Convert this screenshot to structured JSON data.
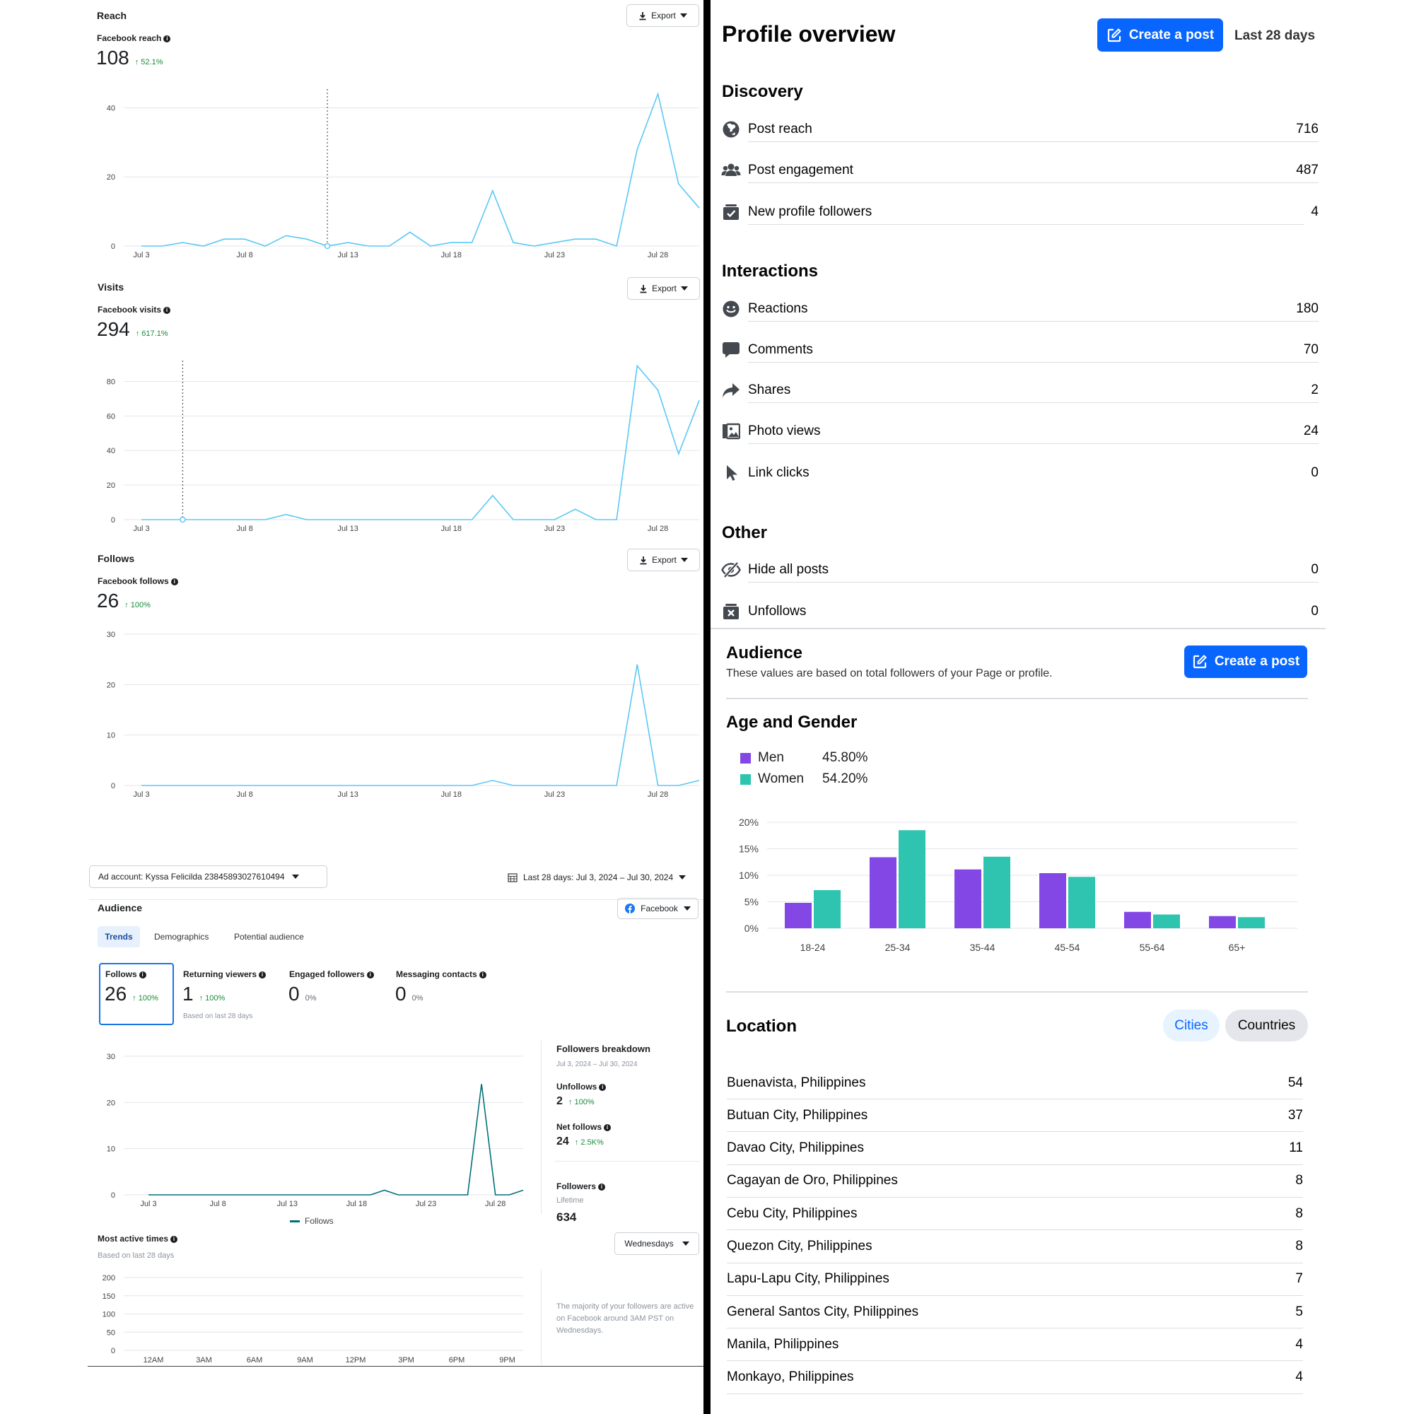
{
  "left": {
    "reach": {
      "title": "Reach",
      "export_label": "Export",
      "metric_label": "Facebook reach",
      "value": "108",
      "change": "52.1%",
      "chart_data": {
        "type": "line",
        "x_ticks": [
          "Jul 3",
          "Jul 8",
          "Jul 13",
          "Jul 18",
          "Jul 23",
          "Jul 28"
        ],
        "y_ticks": [
          "0",
          "20",
          "40"
        ],
        "ylim": [
          0,
          45
        ],
        "values": [
          0,
          0,
          1,
          0,
          2,
          2,
          0,
          3,
          2,
          0,
          1,
          0,
          0,
          4,
          0,
          1,
          1,
          16,
          1,
          0,
          1,
          2,
          2,
          0,
          28,
          44,
          18,
          11
        ],
        "color": "#5bc8f5"
      }
    },
    "visits": {
      "title": "Visits",
      "export_label": "Export",
      "metric_label": "Facebook visits",
      "value": "294",
      "change": "617.1%",
      "chart_data": {
        "type": "line",
        "x_ticks": [
          "Jul 3",
          "Jul 8",
          "Jul 13",
          "Jul 18",
          "Jul 23",
          "Jul 28"
        ],
        "y_ticks": [
          "0",
          "20",
          "40",
          "60",
          "80"
        ],
        "ylim": [
          0,
          90
        ],
        "values": [
          0,
          0,
          0,
          0,
          0,
          0,
          0,
          3,
          0,
          0,
          0,
          0,
          0,
          0,
          0,
          0,
          0,
          14,
          0,
          0,
          0,
          6,
          0,
          0,
          89,
          75,
          38,
          69
        ],
        "color": "#5bc8f5"
      }
    },
    "follows": {
      "title": "Follows",
      "export_label": "Export",
      "metric_label": "Facebook follows",
      "value": "26",
      "change": "100%",
      "chart_data": {
        "type": "line",
        "x_ticks": [
          "Jul 3",
          "Jul 8",
          "Jul 13",
          "Jul 18",
          "Jul 23",
          "Jul 28"
        ],
        "y_ticks": [
          "0",
          "10",
          "20",
          "30"
        ],
        "ylim": [
          0,
          30
        ],
        "values": [
          0,
          0,
          0,
          0,
          0,
          0,
          0,
          0,
          0,
          0,
          0,
          0,
          0,
          0,
          0,
          0,
          0,
          1,
          0,
          0,
          0,
          0,
          0,
          0,
          24,
          0,
          0,
          1
        ],
        "color": "#5bc8f5"
      }
    },
    "ad_account": "Ad account: Kyssa Felicilda 238458930276104​94",
    "date_range": "Last 28 days: Jul 3, 2024 – Jul 30, 2024",
    "audience": {
      "title": "Audience",
      "platform": "Facebook",
      "tabs": [
        "Trends",
        "Demographics",
        "Potential audience"
      ],
      "metrics": [
        {
          "label": "Follows",
          "value": "26",
          "change": "100%"
        },
        {
          "label": "Returning viewers",
          "value": "1",
          "change": "100%",
          "note": "Based on last 28 days"
        },
        {
          "label": "Engaged followers",
          "value": "0",
          "change": "0%"
        },
        {
          "label": "Messaging contacts",
          "value": "0",
          "change": "0%"
        }
      ],
      "follows_chart": {
        "type": "line",
        "x_ticks": [
          "Jul 3",
          "Jul 8",
          "Jul 13",
          "Jul 18",
          "Jul 23",
          "Jul 28"
        ],
        "y_ticks": [
          "0",
          "10",
          "20",
          "30"
        ],
        "ylim": [
          0,
          30
        ],
        "values": [
          0,
          0,
          0,
          0,
          0,
          0,
          0,
          0,
          0,
          0,
          0,
          0,
          0,
          0,
          0,
          0,
          0,
          1,
          0,
          0,
          0,
          0,
          0,
          0,
          24,
          0,
          0,
          1
        ],
        "legend": "Follows",
        "color": "#00707a"
      },
      "breakdown": {
        "title": "Followers breakdown",
        "range": "Jul 3, 2024 – Jul 30, 2024",
        "unfollows_label": "Unfollows",
        "unfollows_value": "2",
        "unfollows_change": "100%",
        "net_label": "Net follows",
        "net_value": "24",
        "net_change": "2.5K%",
        "followers_label": "Followers",
        "followers_sub": "Lifetime",
        "followers_value": "634"
      },
      "active": {
        "title": "Most active times",
        "subtitle": "Based on last 28 days",
        "day_select": "Wednesdays",
        "x_ticks": [
          "12AM",
          "3AM",
          "6AM",
          "9AM",
          "12PM",
          "3PM",
          "6PM",
          "9PM"
        ],
        "y_ticks": [
          "0",
          "50",
          "100",
          "150",
          "200"
        ],
        "note": "The majority of your followers are active on Facebook around 3AM PST on Wednesdays."
      }
    }
  },
  "right": {
    "title": "Profile overview",
    "create_post": "Create a post",
    "range": "Last 28 days",
    "discovery": {
      "title": "Discovery",
      "items": [
        {
          "label": "Post reach",
          "value": "716",
          "icon": "globe-icon"
        },
        {
          "label": "Post engagement",
          "value": "487",
          "icon": "people-icon"
        },
        {
          "label": "New profile followers",
          "value": "4",
          "icon": "check-box-icon"
        }
      ]
    },
    "interactions": {
      "title": "Interactions",
      "items": [
        {
          "label": "Reactions",
          "value": "180",
          "icon": "smile-icon"
        },
        {
          "label": "Comments",
          "value": "70",
          "icon": "comment-icon"
        },
        {
          "label": "Shares",
          "value": "2",
          "icon": "share-icon"
        },
        {
          "label": "Photo views",
          "value": "24",
          "icon": "photo-icon"
        },
        {
          "label": "Link clicks",
          "value": "0",
          "icon": "cursor-icon"
        }
      ]
    },
    "other": {
      "title": "Other",
      "items": [
        {
          "label": "Hide all posts",
          "value": "0",
          "icon": "hide-eye-icon"
        },
        {
          "label": "Unfollows",
          "value": "0",
          "icon": "x-box-icon"
        }
      ]
    },
    "audience": {
      "title": "Audience",
      "subtitle": "These values are based on total followers of your Page or profile.",
      "create_post": "Create a post"
    },
    "age_gender": {
      "title": "Age and Gender",
      "legend": [
        {
          "label": "Men",
          "value": "45.80%",
          "color": "#8247e5"
        },
        {
          "label": "Women",
          "value": "54.20%",
          "color": "#2ec4b0"
        }
      ],
      "chart_data": {
        "type": "bar",
        "categories": [
          "18-24",
          "25-34",
          "35-44",
          "45-54",
          "55-64",
          "65+"
        ],
        "y_ticks": [
          "0%",
          "5%",
          "10%",
          "15%",
          "20%"
        ],
        "ylim": [
          0,
          20
        ],
        "series": [
          {
            "name": "Men",
            "values": [
              4.8,
              13.4,
              11.1,
              10.4,
              3.1,
              2.3
            ]
          },
          {
            "name": "Women",
            "values": [
              7.2,
              18.5,
              13.5,
              9.7,
              2.6,
              2.1
            ]
          }
        ]
      }
    },
    "location": {
      "title": "Location",
      "tab_cities": "Cities",
      "tab_countries": "Countries",
      "items": [
        {
          "name": "Buenavista, Philippines",
          "value": "54"
        },
        {
          "name": "Butuan City, Philippines",
          "value": "37"
        },
        {
          "name": "Davao City, Philippines",
          "value": "11"
        },
        {
          "name": "Cagayan de Oro, Philippines",
          "value": "8"
        },
        {
          "name": "Cebu City, Philippines",
          "value": "8"
        },
        {
          "name": "Quezon City, Philippines",
          "value": "8"
        },
        {
          "name": "Lapu-Lapu City, Philippines",
          "value": "7"
        },
        {
          "name": "General Santos City, Philippines",
          "value": "5"
        },
        {
          "name": "Manila, Philippines",
          "value": "4"
        },
        {
          "name": "Monkayo, Philippines",
          "value": "4"
        }
      ]
    }
  }
}
